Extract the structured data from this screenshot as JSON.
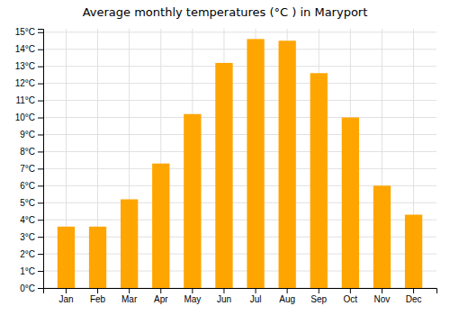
{
  "chart_data": {
    "type": "bar",
    "title": "Average monthly temperatures (°C ) in Maryport",
    "categories": [
      "Jan",
      "Feb",
      "Mar",
      "Apr",
      "May",
      "Jun",
      "Jul",
      "Aug",
      "Sep",
      "Oct",
      "Nov",
      "Dec"
    ],
    "values": [
      3.6,
      3.6,
      5.2,
      7.3,
      10.2,
      13.2,
      14.6,
      14.5,
      12.6,
      10.0,
      6.0,
      4.3
    ],
    "color": "#FFA500",
    "ylim": [
      0,
      15.2
    ],
    "yticks": [
      {
        "value": 0,
        "label": "0°C"
      },
      {
        "value": 1,
        "label": "1°C"
      },
      {
        "value": 2,
        "label": "2°C"
      },
      {
        "value": 3,
        "label": "3°C"
      },
      {
        "value": 4,
        "label": "4°C"
      },
      {
        "value": 5,
        "label": "5°C"
      },
      {
        "value": 6,
        "label": "6°C"
      },
      {
        "value": 7,
        "label": "7°C"
      },
      {
        "value": 8,
        "label": "8°C"
      },
      {
        "value": 9,
        "label": "9°C"
      },
      {
        "value": 10,
        "label": "10°C"
      },
      {
        "value": 11,
        "label": "11°C"
      },
      {
        "value": 12,
        "label": "12°C"
      },
      {
        "value": 13,
        "label": "13°C"
      },
      {
        "value": 14,
        "label": "14°C"
      },
      {
        "value": 15,
        "label": "15°C"
      }
    ],
    "grid": true
  }
}
